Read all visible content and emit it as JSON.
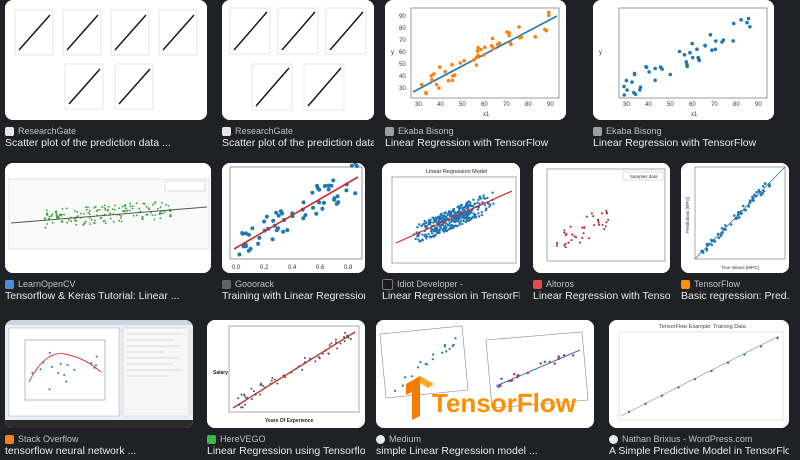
{
  "results": [
    {
      "source": "ResearchGate",
      "title": "Scatter plot of the prediction data ...",
      "favicon_color": "#e7e7e7"
    },
    {
      "source": "ResearchGate",
      "title": "Scatter plot of the prediction data ...",
      "favicon_color": "#e7e7e7"
    },
    {
      "source": "Ekaba Bisong",
      "title": "Linear Regression with TensorFlow",
      "favicon_color": "#9aa0a6"
    },
    {
      "source": "Ekaba Bisong",
      "title": "Linear Regression with TensorFlow",
      "favicon_color": "#9aa0a6"
    },
    {
      "source": "LearnOpenCV",
      "title": "Tensorflow & Keras Tutorial: Linear ...",
      "favicon_color": "#4a90d9"
    },
    {
      "source": "Gooorack",
      "title": "Training with Linear Regression ...",
      "favicon_color": "#5f6368"
    },
    {
      "source": "Idiot Developer -",
      "title": "Linear Regression in TensorFl...",
      "favicon_color": "#1a1a1a"
    },
    {
      "source": "Altoros",
      "title": "Linear Regression with Tensor...",
      "favicon_color": "#e34c4c"
    },
    {
      "source": "TensorFlow",
      "title": "Basic regression: Pred...",
      "favicon_color": "#ff8f00"
    },
    {
      "source": "Stack Overflow",
      "title": "tensorflow neural network ...",
      "favicon_color": "#f48024"
    },
    {
      "source": "HereVEGO",
      "title": "Linear Regression using Tensorflow...",
      "favicon_color": "#3db54a"
    },
    {
      "source": "Medium",
      "title": "simple Linear Regression model ...",
      "favicon_color": "#e8eaed"
    },
    {
      "source": "Nathan Brixius - WordPress.com",
      "title": "A Simple Predictive Model in TensorFlow ...",
      "favicon_color": "#e8eaed"
    }
  ],
  "thumb_text": {
    "tensorflow_logo": "TensorFlow",
    "training_data_title": "TensorFlow Example: Training Data",
    "lr_model_title": "Linear Regression Model",
    "samples_legend": "Samples data",
    "ekaba_xlabel": "x1",
    "ekaba_ylabel": "y",
    "ekaba_x_ticks": [
      "30",
      "40",
      "50",
      "60",
      "70",
      "80",
      "90"
    ],
    "ekaba_y_ticks": [
      "30",
      "40",
      "50",
      "60",
      "70",
      "80",
      "90"
    ],
    "gooorack_x_ticks": [
      "0.0",
      "0.2",
      "0.4",
      "0.6",
      "0.8"
    ],
    "tf_xlabel": "True Values [MPG]",
    "tf_ylabel": "Predictions [MPG]",
    "herevego_ylabel": "Salary",
    "herevego_xlabel": "Years Of Experience"
  }
}
